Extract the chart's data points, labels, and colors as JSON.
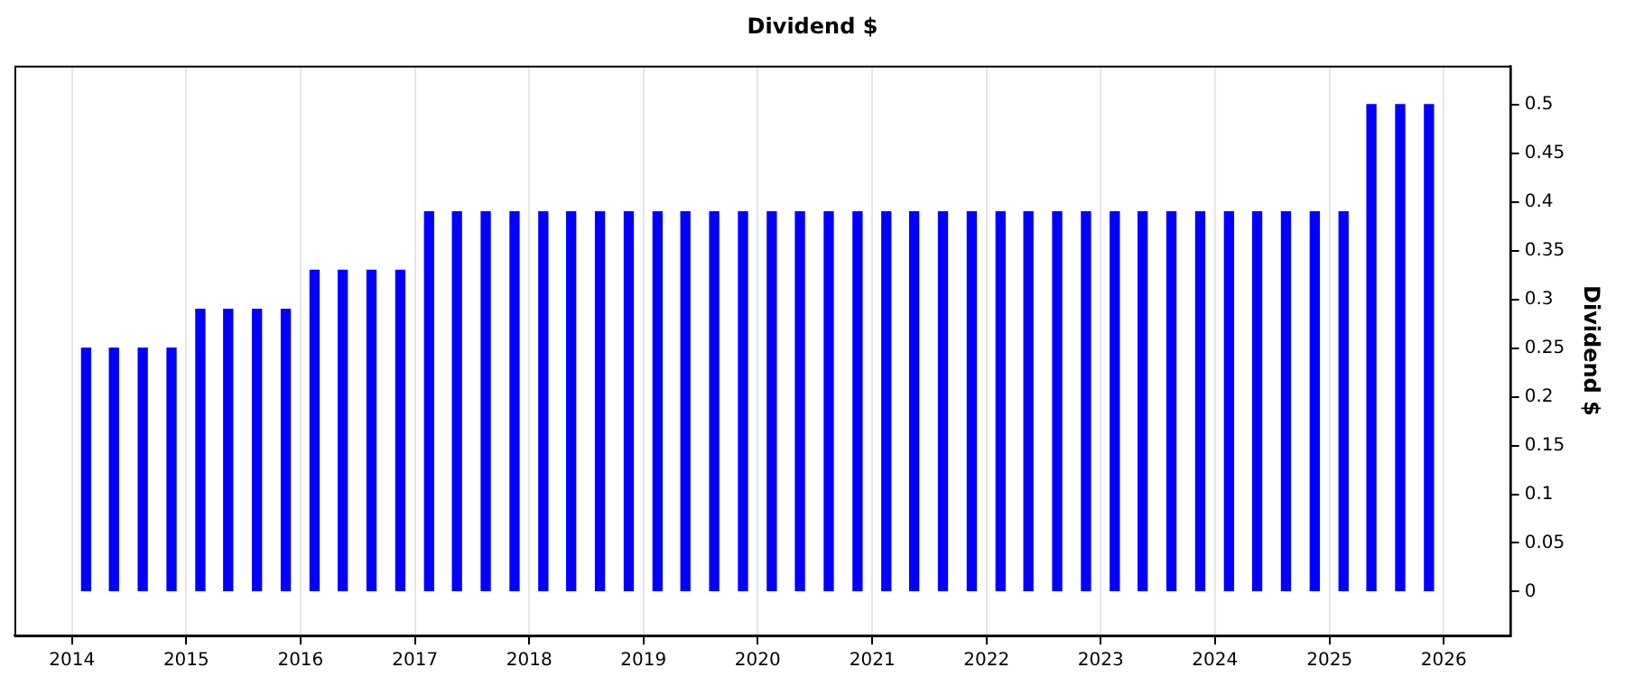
{
  "chart_data": {
    "type": "bar",
    "title": "Dividend $",
    "ylabel": "Dividend $",
    "x": [
      "2014-02-15",
      "2014-05-15",
      "2014-08-15",
      "2014-11-15",
      "2015-02-15",
      "2015-05-15",
      "2015-08-15",
      "2015-11-15",
      "2016-02-15",
      "2016-05-15",
      "2016-08-15",
      "2016-11-15",
      "2017-02-15",
      "2017-05-15",
      "2017-08-15",
      "2017-11-15",
      "2018-02-15",
      "2018-05-15",
      "2018-08-15",
      "2018-11-15",
      "2019-02-15",
      "2019-05-15",
      "2019-08-15",
      "2019-11-15",
      "2020-02-15",
      "2020-05-15",
      "2020-08-15",
      "2020-11-15",
      "2021-02-15",
      "2021-05-15",
      "2021-08-15",
      "2021-11-15",
      "2022-02-15",
      "2022-05-15",
      "2022-08-15",
      "2022-11-15",
      "2023-02-15",
      "2023-05-15",
      "2023-08-15",
      "2023-11-15",
      "2024-02-15",
      "2024-05-15",
      "2024-08-15",
      "2024-11-15",
      "2025-02-15",
      "2025-05-15",
      "2025-08-15",
      "2025-11-15"
    ],
    "values": [
      0.25,
      0.25,
      0.25,
      0.25,
      0.29,
      0.29,
      0.29,
      0.29,
      0.33,
      0.33,
      0.33,
      0.33,
      0.39,
      0.39,
      0.39,
      0.39,
      0.39,
      0.39,
      0.39,
      0.39,
      0.39,
      0.39,
      0.39,
      0.39,
      0.39,
      0.39,
      0.39,
      0.39,
      0.39,
      0.39,
      0.39,
      0.39,
      0.39,
      0.39,
      0.39,
      0.39,
      0.39,
      0.39,
      0.39,
      0.39,
      0.39,
      0.39,
      0.39,
      0.39,
      0.39,
      0.5,
      0.5,
      0.5
    ],
    "color": "#0000ff",
    "xlim": [
      "2013-07",
      "2026-08"
    ],
    "xticks": [
      "2014",
      "2015",
      "2016",
      "2017",
      "2018",
      "2019",
      "2020",
      "2021",
      "2022",
      "2023",
      "2024",
      "2025",
      "2026"
    ],
    "ylim": [
      -0.045,
      0.54
    ],
    "yticks": [
      0,
      0.05,
      0.1,
      0.15,
      0.2,
      0.25,
      0.3,
      0.35,
      0.4,
      0.45,
      0.5
    ],
    "grid": "x"
  }
}
